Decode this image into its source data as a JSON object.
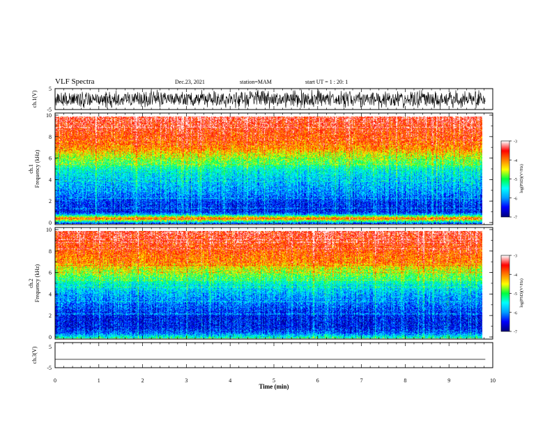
{
  "header": {
    "title": "VLF Spectra",
    "date": "Dec.23, 2021",
    "station": "station=MAM",
    "start": "start  UT =   1 : 20: 1"
  },
  "chart_data": [
    {
      "type": "line",
      "panel": "ch1-waveform",
      "ylabel": "ch.1(V)",
      "yticks": [
        "5",
        "-5"
      ],
      "ylim": [
        -5,
        5
      ],
      "description_values": "dense noisy waveform spanning approximately -5 to 5 V"
    },
    {
      "type": "heatmap",
      "panel": "ch1-spectrogram",
      "ylabel_line1": "ch.1",
      "ylabel_line2": "Frequency  (kHz)",
      "yticks": [
        "0",
        "2",
        "4",
        "6",
        "8",
        "10"
      ],
      "ylim": [
        0,
        10
      ],
      "colorbar": {
        "label": "log(PSD)(V²/Hz)",
        "ticks": [
          "-3",
          "-4",
          "-5",
          "-6",
          "-7"
        ],
        "range": [
          -7,
          -3
        ]
      },
      "frequency_profile_kHz": [
        0,
        0.5,
        1,
        2,
        3,
        4,
        5,
        5.5,
        6,
        6.5,
        7,
        8,
        9,
        10
      ],
      "log_psd_profile": [
        -6.7,
        -3.8,
        -6.5,
        -6.4,
        -6.0,
        -5.8,
        -5.5,
        -5.1,
        -4.8,
        -4.5,
        -4.1,
        -3.8,
        -3.6,
        -3.4
      ]
    },
    {
      "type": "heatmap",
      "panel": "ch2-spectrogram",
      "ylabel_line1": "ch.2",
      "ylabel_line2": "Frequency  (kHz)",
      "yticks": [
        "0",
        "2",
        "4",
        "6",
        "8",
        "10"
      ],
      "ylim": [
        0,
        10
      ],
      "colorbar": {
        "label": "log(PSD)(V²/Hz)",
        "ticks": [
          "-3",
          "-4",
          "-5",
          "-6",
          "-7"
        ],
        "range": [
          -7,
          -3
        ]
      },
      "frequency_profile_kHz": [
        0,
        0.5,
        1,
        2,
        3,
        4,
        5,
        5.5,
        6,
        6.5,
        7,
        8,
        9,
        10
      ],
      "log_psd_profile": [
        -5.2,
        -6.2,
        -6.5,
        -6.5,
        -6.2,
        -5.9,
        -5.5,
        -5.1,
        -4.8,
        -4.5,
        -4.1,
        -3.8,
        -3.6,
        -3.4
      ]
    },
    {
      "type": "line",
      "panel": "ch3-waveform",
      "ylabel": "ch.3(V)",
      "yticks": [
        "5",
        "-5"
      ],
      "ylim": [
        -5,
        5
      ],
      "constant_value": -2
    }
  ],
  "xaxis": {
    "label": "Time  (min)",
    "ticks": [
      "0",
      "1",
      "2",
      "3",
      "4",
      "5",
      "6",
      "7",
      "8",
      "9",
      "10"
    ],
    "xlim": [
      0,
      10
    ],
    "data_end": 9.83
  },
  "colors": {
    "colormap": [
      "#000080",
      "#0000ff",
      "#00a0ff",
      "#00ffff",
      "#00ff40",
      "#ffff00",
      "#ff8000",
      "#ff0000",
      "#ffffff"
    ]
  }
}
